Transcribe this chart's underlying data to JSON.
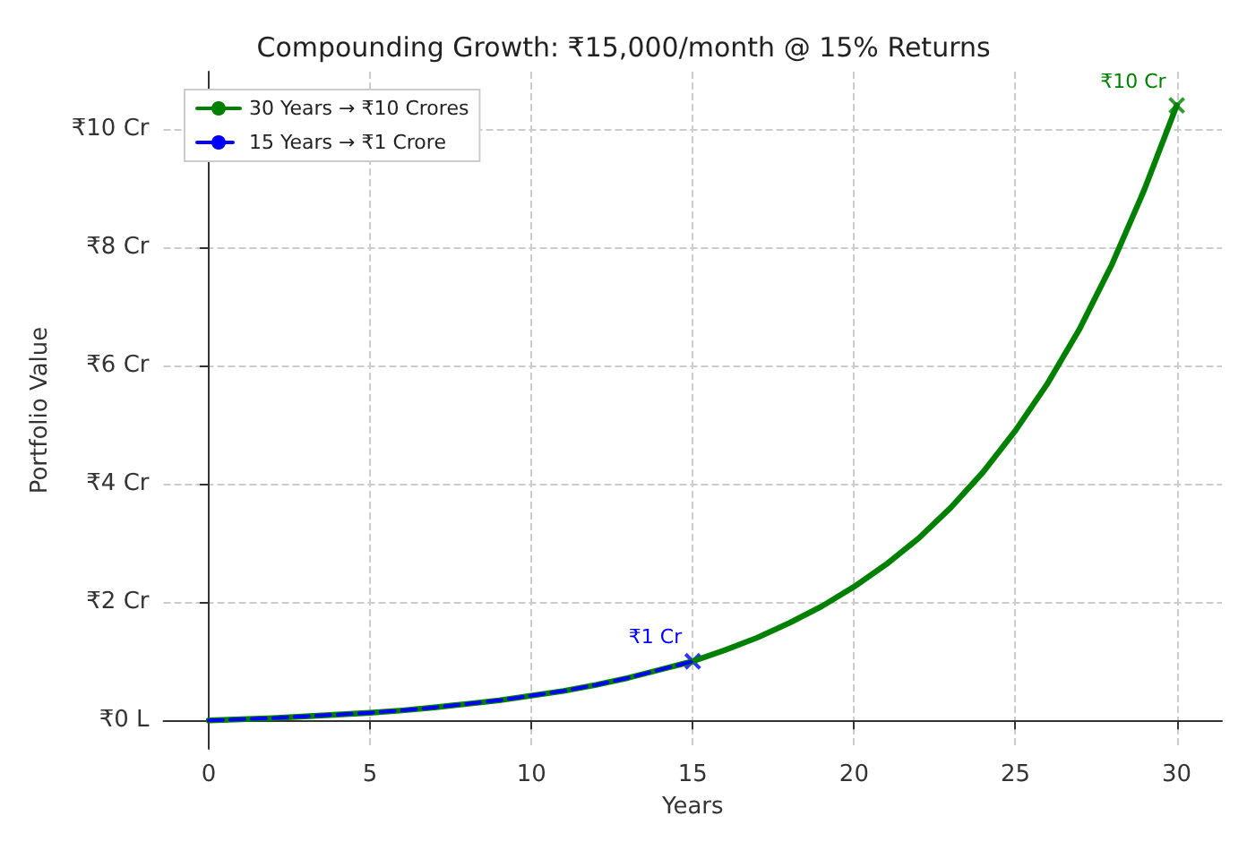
{
  "chart_data": {
    "type": "line",
    "title": "Compounding Growth: ₹15,000/month @ 15% Returns",
    "xlabel": "Years",
    "ylabel": "Portfolio Value",
    "series": [
      {
        "name": "30 Years → ₹10 Crores",
        "color": "#008000",
        "line_style": "solid",
        "x": [
          0,
          1,
          2,
          3,
          4,
          5,
          6,
          7,
          8,
          9,
          10,
          11,
          12,
          13,
          14,
          15,
          16,
          17,
          18,
          19,
          20,
          21,
          22,
          23,
          24,
          25,
          26,
          27,
          28,
          29,
          30
        ],
        "values": [
          0,
          0.02,
          0.04,
          0.07,
          0.1,
          0.13,
          0.17,
          0.22,
          0.28,
          0.34,
          0.42,
          0.5,
          0.6,
          0.72,
          0.86,
          1.0,
          1.19,
          1.4,
          1.65,
          1.93,
          2.26,
          2.64,
          3.08,
          3.6,
          4.2,
          4.9,
          5.7,
          6.63,
          7.72,
          8.98,
          10.4
        ]
      },
      {
        "name": "15 Years → ₹1 Crore",
        "color": "#0000ff",
        "line_style": "dashed",
        "x": [
          0,
          1,
          2,
          3,
          4,
          5,
          6,
          7,
          8,
          9,
          10,
          11,
          12,
          13,
          14,
          15
        ],
        "values": [
          0,
          0.02,
          0.04,
          0.07,
          0.1,
          0.13,
          0.17,
          0.22,
          0.28,
          0.34,
          0.42,
          0.5,
          0.6,
          0.72,
          0.86,
          1.0
        ]
      },
      {
        "type": "scatter",
        "marker": "cross",
        "color": "#0000ff",
        "x": [
          15
        ],
        "values": [
          1.0
        ]
      },
      {
        "type": "scatter",
        "marker": "cross",
        "color": "#008000",
        "x": [
          30
        ],
        "values": [
          10.4
        ]
      }
    ],
    "annotations": [
      {
        "text": "₹1 Cr",
        "x": 15,
        "y": 1.0
      },
      {
        "text": "₹10 Cr",
        "x": 30,
        "y": 10.4
      }
    ],
    "xlim": [
      -1.4,
      31.4
    ],
    "xticks": [
      0,
      5,
      10,
      15,
      20,
      25,
      30
    ],
    "ylim": [
      -0.48,
      10.97
    ],
    "yticks": [
      {
        "value": 0,
        "label": "₹0 L"
      },
      {
        "value": 2,
        "label": "₹2 Cr"
      },
      {
        "value": 4,
        "label": "₹4 Cr"
      },
      {
        "value": 6,
        "label": "₹6 Cr"
      },
      {
        "value": 8,
        "label": "₹8 Cr"
      },
      {
        "value": 10,
        "label": "₹10 Cr"
      }
    ],
    "grid": true,
    "legend": "top left",
    "marker": "none"
  }
}
